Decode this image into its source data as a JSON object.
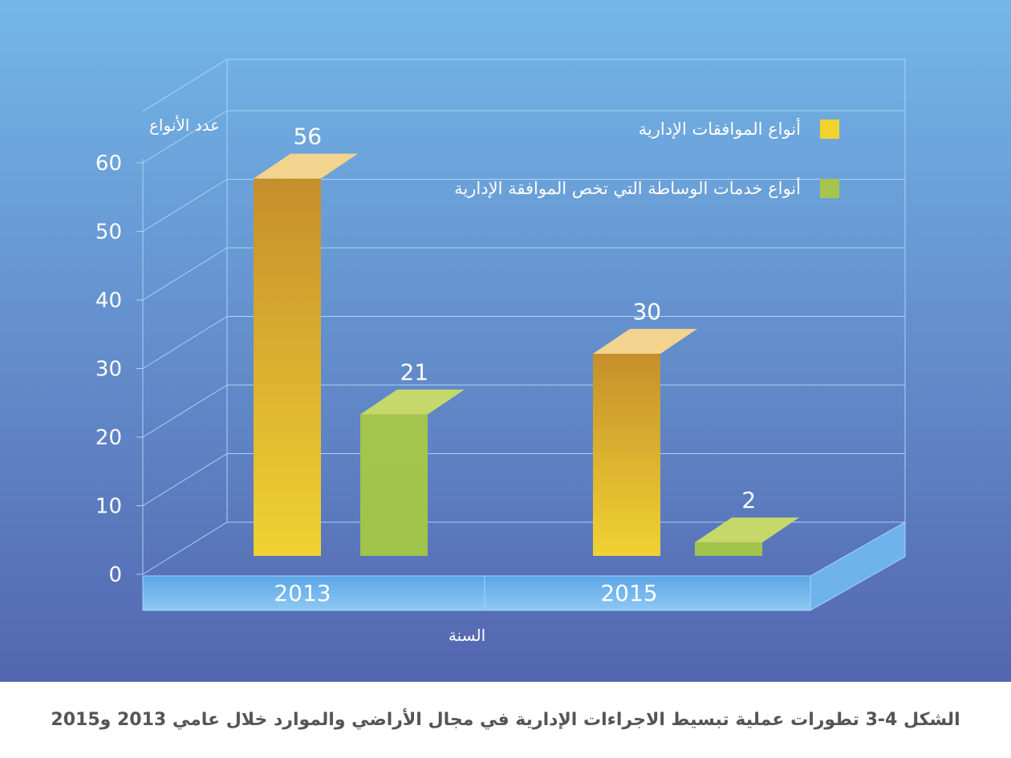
{
  "chart_data": {
    "type": "bar",
    "ylabel": "عدد الأنواع",
    "xlabel": "السنة",
    "categories": [
      "2013",
      "2015"
    ],
    "ylim": [
      0,
      60
    ],
    "yticks": [
      0,
      10,
      20,
      30,
      40,
      50,
      60
    ],
    "grid": true,
    "legend_position": "top-right",
    "series": [
      {
        "name": "أنواع الموافقات الإدارية",
        "values": [
          56,
          30
        ],
        "color": "#f0cf31"
      },
      {
        "name": "أنواع خدمات الوساطة التي تخص الموافقة الإدارية",
        "values": [
          21,
          2
        ],
        "color": "#a3c54d"
      }
    ]
  },
  "caption": "الشكل 4-3 تطورات عملية تبسيط الاجراءات الإدارية في مجال الأراضي والموارد خلال عامي 2013 و2015",
  "colors": {
    "background_top": "#74b7e8",
    "background_bottom": "#5366b0",
    "gridline": "#a9d4f7",
    "text": "#ffffff",
    "caption_text": "#555555"
  }
}
